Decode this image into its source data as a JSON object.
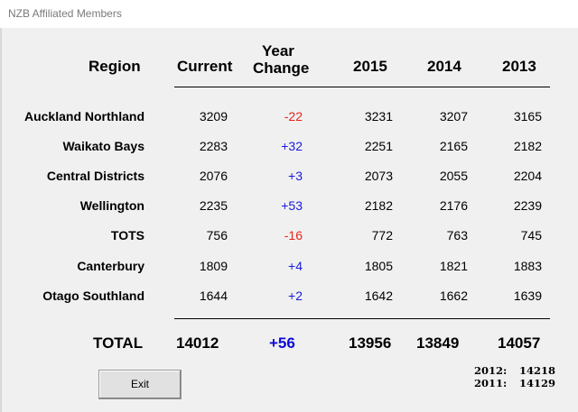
{
  "window": {
    "title": "NZB Affiliated Members"
  },
  "headers": {
    "region": "Region",
    "current": "Current",
    "year_change_1": "Year",
    "year_change_2": "Change",
    "y2015": "2015",
    "y2014": "2014",
    "y2013": "2013"
  },
  "rows": [
    {
      "region": "Auckland Northland",
      "current": "3209",
      "change": "-22",
      "y2015": "3231",
      "y2014": "3207",
      "y2013": "3165"
    },
    {
      "region": "Waikato Bays",
      "current": "2283",
      "change": "+32",
      "y2015": "2251",
      "y2014": "2165",
      "y2013": "2182"
    },
    {
      "region": "Central Districts",
      "current": "2076",
      "change": "+3",
      "y2015": "2073",
      "y2014": "2055",
      "y2013": "2204"
    },
    {
      "region": "Wellington",
      "current": "2235",
      "change": "+53",
      "y2015": "2182",
      "y2014": "2176",
      "y2013": "2239"
    },
    {
      "region": "TOTS",
      "current": "756",
      "change": "-16",
      "y2015": "772",
      "y2014": "763",
      "y2013": "745"
    },
    {
      "region": "Canterbury",
      "current": "1809",
      "change": "+4",
      "y2015": "1805",
      "y2014": "1821",
      "y2013": "1883"
    },
    {
      "region": "Otago Southland",
      "current": "1644",
      "change": "+2",
      "y2015": "1642",
      "y2014": "1662",
      "y2013": "1639"
    }
  ],
  "total": {
    "label": "TOTAL",
    "current": "14012",
    "change": "+56",
    "y2015": "13956",
    "y2014": "13849",
    "y2013": "14057"
  },
  "history": [
    {
      "year": "2012:",
      "value": "14218"
    },
    {
      "year": "2011:",
      "value": "14129"
    }
  ],
  "buttons": {
    "exit": "Exit"
  },
  "colors": {
    "negative": "#e8231e",
    "positive": "#1a1adc",
    "total_change": "#0a0ad6"
  }
}
